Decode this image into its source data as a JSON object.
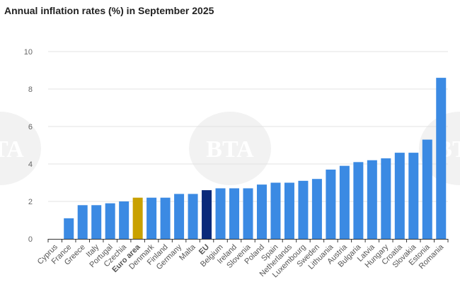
{
  "chart_data": {
    "type": "bar",
    "title": "Annual inflation rates (%) in September 2025",
    "xlabel": "",
    "ylabel": "",
    "ylim": [
      0,
      10
    ],
    "yticks": [
      0,
      2,
      4,
      6,
      8,
      10
    ],
    "grid": true,
    "categories": [
      "Cyprus",
      "France",
      "Greece",
      "Italy",
      "Portugal",
      "Czechia",
      "Euro area",
      "Denmark",
      "Finland",
      "Germany",
      "Malta",
      "EU",
      "Belgium",
      "Ireland",
      "Slovenia",
      "Poland",
      "Spain",
      "Netherlands",
      "Luxembourg",
      "Sweden",
      "Lithuania",
      "Austria",
      "Bulgaria",
      "Latvia",
      "Hungary",
      "Croatia",
      "Slovakia",
      "Estonia",
      "Romania"
    ],
    "values": [
      0.0,
      1.1,
      1.8,
      1.8,
      1.9,
      2.0,
      2.2,
      2.2,
      2.2,
      2.4,
      2.4,
      2.6,
      2.7,
      2.7,
      2.7,
      2.9,
      3.0,
      3.0,
      3.1,
      3.2,
      3.7,
      3.9,
      4.1,
      4.2,
      4.3,
      4.6,
      4.6,
      5.3,
      8.6
    ],
    "highlight": {
      "Euro area": "#c9a100",
      "EU": "#0b2a7a"
    },
    "bold_categories": [
      "Euro area",
      "EU"
    ],
    "bar_color": "#3b8ae3"
  },
  "watermark": "BTA"
}
